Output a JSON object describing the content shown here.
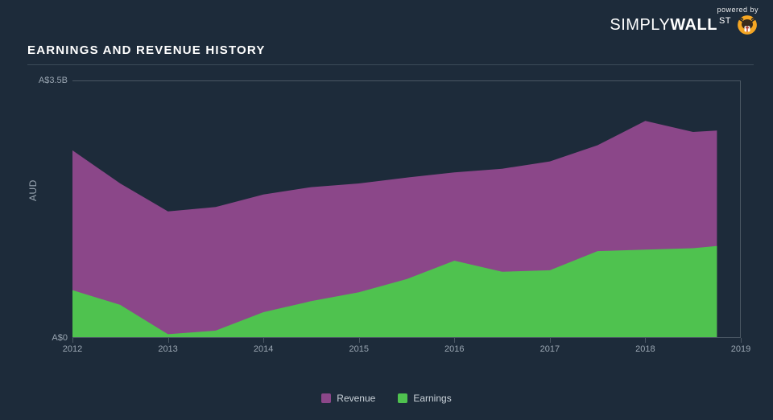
{
  "branding": {
    "powered_by": "powered by",
    "brand_simply": "SIMPLY",
    "brand_wall": "WALL",
    "brand_st": "ST"
  },
  "title": "EARNINGS AND REVENUE HISTORY",
  "chart": {
    "type": "area",
    "background_color": "#1d2b3a",
    "grid_color": "#35424e",
    "border_color": "#4a5763",
    "axis_text_color": "#9aa6b2",
    "y_axis_label": "AUD",
    "y_ticks": [
      {
        "v": 0.0,
        "label": "A$0"
      },
      {
        "v": 3.5,
        "label": "A$3.5B"
      }
    ],
    "ylim": [
      0,
      3.5
    ],
    "x_ticks": [
      2012,
      2013,
      2014,
      2015,
      2016,
      2017,
      2018,
      2019
    ],
    "xlim": [
      2012,
      2019
    ],
    "series": [
      {
        "name": "Revenue",
        "color": "#8b4789",
        "points": [
          {
            "x": 2012.0,
            "y": 2.55
          },
          {
            "x": 2012.5,
            "y": 2.1
          },
          {
            "x": 2013.0,
            "y": 1.72
          },
          {
            "x": 2013.5,
            "y": 1.78
          },
          {
            "x": 2014.0,
            "y": 1.95
          },
          {
            "x": 2014.5,
            "y": 2.05
          },
          {
            "x": 2015.0,
            "y": 2.1
          },
          {
            "x": 2015.5,
            "y": 2.18
          },
          {
            "x": 2016.0,
            "y": 2.25
          },
          {
            "x": 2016.5,
            "y": 2.3
          },
          {
            "x": 2017.0,
            "y": 2.4
          },
          {
            "x": 2017.5,
            "y": 2.62
          },
          {
            "x": 2018.0,
            "y": 2.95
          },
          {
            "x": 2018.5,
            "y": 2.8
          },
          {
            "x": 2018.75,
            "y": 2.82
          }
        ]
      },
      {
        "name": "Earnings",
        "color": "#4fc24f",
        "points": [
          {
            "x": 2012.0,
            "y": 0.65
          },
          {
            "x": 2012.5,
            "y": 0.45
          },
          {
            "x": 2013.0,
            "y": 0.05
          },
          {
            "x": 2013.5,
            "y": 0.1
          },
          {
            "x": 2014.0,
            "y": 0.35
          },
          {
            "x": 2014.5,
            "y": 0.5
          },
          {
            "x": 2015.0,
            "y": 0.62
          },
          {
            "x": 2015.5,
            "y": 0.8
          },
          {
            "x": 2016.0,
            "y": 1.05
          },
          {
            "x": 2016.5,
            "y": 0.9
          },
          {
            "x": 2017.0,
            "y": 0.92
          },
          {
            "x": 2017.5,
            "y": 1.18
          },
          {
            "x": 2018.0,
            "y": 1.2
          },
          {
            "x": 2018.5,
            "y": 1.22
          },
          {
            "x": 2018.75,
            "y": 1.25
          }
        ]
      }
    ],
    "legend": [
      {
        "label": "Revenue",
        "color": "#8b4789"
      },
      {
        "label": "Earnings",
        "color": "#4fc24f"
      }
    ],
    "title_fontsize": 15,
    "axis_fontsize": 11,
    "legend_fontsize": 12
  }
}
